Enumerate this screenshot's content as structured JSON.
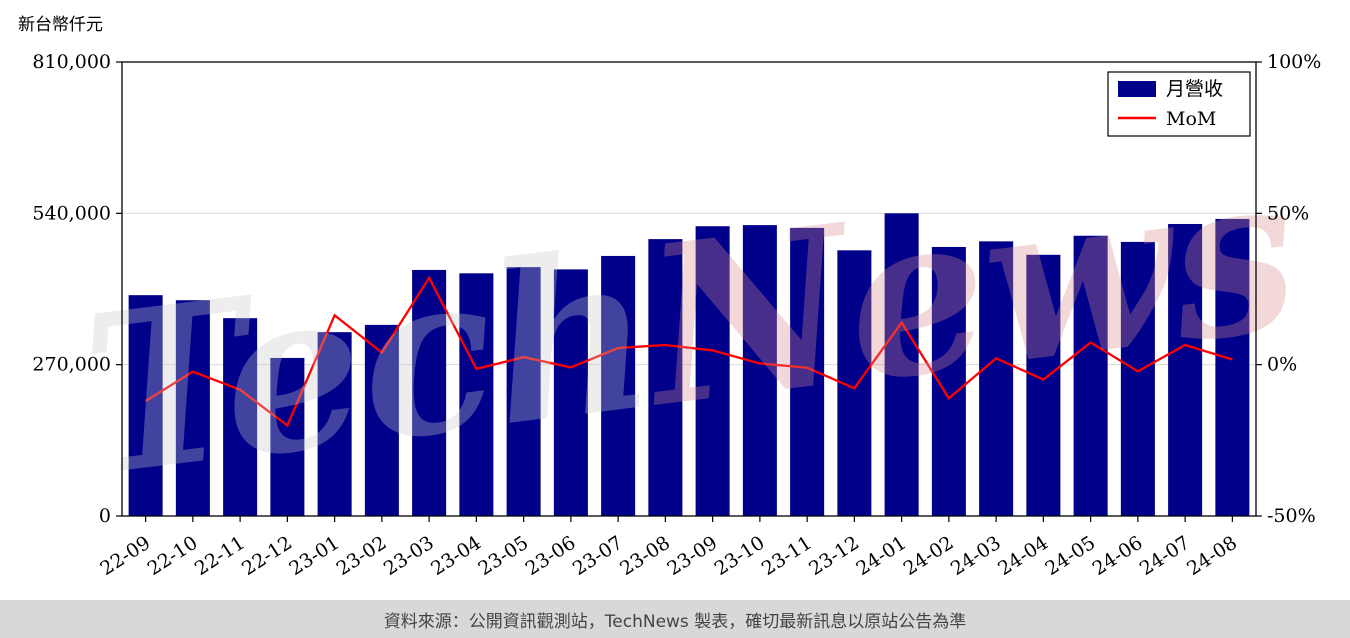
{
  "chart_data": {
    "type": "bar",
    "title": "",
    "ylabel": "新台幣仟元",
    "categories": [
      "22-09",
      "22-10",
      "22-11",
      "22-12",
      "23-01",
      "23-02",
      "23-03",
      "23-04",
      "23-05",
      "23-06",
      "23-07",
      "23-08",
      "23-09",
      "23-10",
      "23-11",
      "23-12",
      "24-01",
      "24-02",
      "24-03",
      "24-04",
      "24-05",
      "24-06",
      "24-07",
      "24-08"
    ],
    "series": [
      {
        "name": "月營收",
        "type": "bar",
        "color": "#00008B",
        "axis": "left",
        "values": [
          394000,
          385000,
          353000,
          282000,
          328000,
          341000,
          439000,
          433000,
          444000,
          440000,
          464000,
          494000,
          517000,
          519000,
          514000,
          474000,
          540000,
          480000,
          490000,
          466000,
          500000,
          489000,
          521000,
          530000
        ]
      },
      {
        "name": "MoM",
        "type": "line",
        "color": "#ff0000",
        "axis": "right",
        "values": [
          -12.0,
          -2.3,
          -8.3,
          -20.1,
          16.3,
          4.0,
          28.7,
          -1.4,
          2.5,
          -0.9,
          5.5,
          6.5,
          4.7,
          0.4,
          -1.0,
          -7.8,
          13.9,
          -11.1,
          2.1,
          -4.9,
          7.3,
          -2.2,
          6.5,
          1.7
        ]
      }
    ],
    "left_axis": {
      "min": 0,
      "max": 810000,
      "ticks": [
        {
          "v": 0,
          "label": "0"
        },
        {
          "v": 270000,
          "label": "270,000"
        },
        {
          "v": 540000,
          "label": "540,000"
        },
        {
          "v": 810000,
          "label": "810,000"
        }
      ]
    },
    "right_axis": {
      "min": -50,
      "max": 100,
      "ticks": [
        {
          "v": -50,
          "label": "-50%"
        },
        {
          "v": 0,
          "label": "0%"
        },
        {
          "v": 50,
          "label": "50%"
        },
        {
          "v": 100,
          "label": "100%"
        }
      ]
    },
    "legend": {
      "position": "top-right",
      "entries": [
        "月營收",
        "MoM"
      ]
    },
    "grid": "horizontal"
  },
  "watermark": {
    "text1": "Tech",
    "text2": "News"
  },
  "footer": {
    "text": "資料來源：公開資訊觀測站，TechNews 製表，確切最新訊息以原站公告為準"
  }
}
